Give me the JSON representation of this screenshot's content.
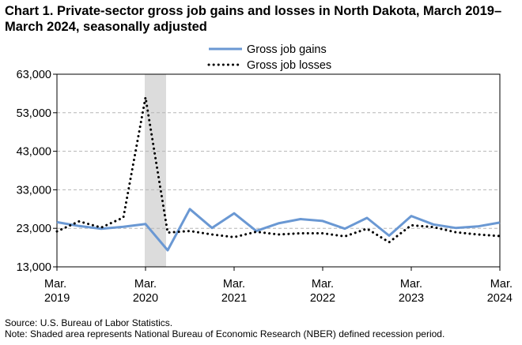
{
  "title": "Chart 1. Private-sector gross job gains and losses in North Dakota, March 2019–March 2024, seasonally adjusted",
  "source": "Source: U.S. Bureau of Labor Statistics.",
  "note": "Note: Shaded area represents National Bureau of Economic Research (NBER) defined  recession period.",
  "chart_data": {
    "type": "line",
    "x_ticks": [
      {
        "month": "Mar.",
        "year": "2019"
      },
      {
        "month": "Mar.",
        "year": "2020"
      },
      {
        "month": "Mar.",
        "year": "2021"
      },
      {
        "month": "Mar.",
        "year": "2022"
      },
      {
        "month": "Mar.",
        "year": "2023"
      },
      {
        "month": "Mar.",
        "year": "2024"
      }
    ],
    "y_ticks": [
      "13,000",
      "23,000",
      "33,000",
      "43,000",
      "53,000",
      "63,000"
    ],
    "ylim": [
      13000,
      63000
    ],
    "grid": "horizontal",
    "legend_position": "top-center",
    "recession_band": {
      "start_quarter_index": 4,
      "end_quarter_index": 5
    },
    "x": [
      "Mar 2019",
      "Jun 2019",
      "Sep 2019",
      "Dec 2019",
      "Mar 2020",
      "Jun 2020",
      "Sep 2020",
      "Dec 2020",
      "Mar 2021",
      "Jun 2021",
      "Sep 2021",
      "Dec 2021",
      "Mar 2022",
      "Jun 2022",
      "Sep 2022",
      "Dec 2022",
      "Mar 2023",
      "Jun 2023",
      "Sep 2023",
      "Dec 2023",
      "Mar 2024"
    ],
    "series": [
      {
        "name": "Gross job gains",
        "color": "#6a98d3",
        "style": "solid",
        "values": [
          24600,
          23600,
          22900,
          23400,
          24100,
          17300,
          28000,
          23100,
          26900,
          22300,
          24300,
          25400,
          24900,
          22900,
          25700,
          21100,
          26200,
          24000,
          23100,
          23500,
          24500
        ]
      },
      {
        "name": "Gross job losses",
        "color": "#000000",
        "style": "dotted",
        "values": [
          22200,
          24800,
          23200,
          25800,
          57000,
          21900,
          22300,
          21400,
          20700,
          22100,
          21400,
          21700,
          21700,
          20900,
          22900,
          19400,
          23800,
          23300,
          22000,
          21400,
          21000
        ]
      }
    ]
  }
}
